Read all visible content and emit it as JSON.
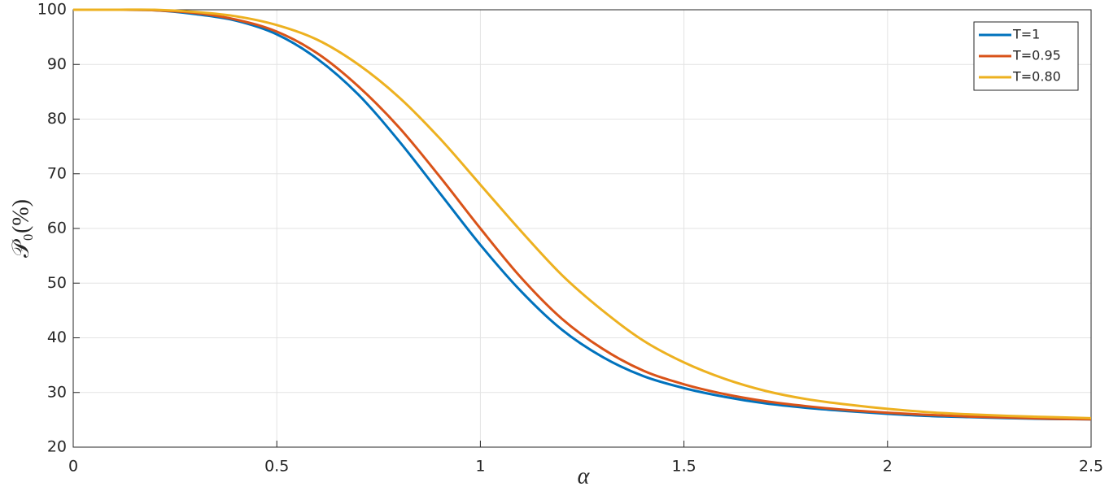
{
  "chart_data": {
    "type": "line",
    "xlabel": "α",
    "ylabel": "𝒫₀(%)",
    "x": [
      0,
      0.1,
      0.2,
      0.3,
      0.4,
      0.5,
      0.6,
      0.7,
      0.8,
      0.9,
      1.0,
      1.1,
      1.2,
      1.3,
      1.4,
      1.5,
      1.6,
      1.7,
      1.8,
      1.9,
      2.0,
      2.1,
      2.2,
      2.3,
      2.4,
      2.5
    ],
    "series": [
      {
        "name": "T=1",
        "color": "#0072bd",
        "values": [
          100,
          100,
          99.9,
          99.2,
          98,
          95.5,
          91,
          84.5,
          76,
          66.5,
          57,
          48.5,
          41.5,
          36.5,
          33,
          30.8,
          29.2,
          28,
          27.2,
          26.6,
          26.1,
          25.7,
          25.5,
          25.3,
          25.15,
          25.1
        ]
      },
      {
        "name": "T=0.95",
        "color": "#d95319",
        "values": [
          100,
          100,
          99.9,
          99.4,
          98.2,
          96,
          92,
          86,
          78.5,
          69.5,
          60,
          51,
          43.5,
          38,
          34,
          31.5,
          29.7,
          28.4,
          27.5,
          26.8,
          26.3,
          25.9,
          25.6,
          25.4,
          25.2,
          25.1
        ]
      },
      {
        "name": "T=0.80",
        "color": "#edb120",
        "values": [
          100,
          100,
          100,
          99.6,
          98.8,
          97.2,
          94.5,
          90,
          84,
          76.5,
          68,
          59.5,
          51.5,
          45,
          39.5,
          35.5,
          32.5,
          30.3,
          28.8,
          27.8,
          27,
          26.4,
          26,
          25.7,
          25.5,
          25.3
        ]
      }
    ],
    "xlim": [
      0,
      2.5
    ],
    "xticks": [
      0,
      0.5,
      1,
      1.5,
      2,
      2.5
    ],
    "ylim": [
      20,
      100
    ],
    "yticks": [
      20,
      30,
      40,
      50,
      60,
      70,
      80,
      90,
      100
    ],
    "grid": true,
    "legend": "top-right"
  }
}
